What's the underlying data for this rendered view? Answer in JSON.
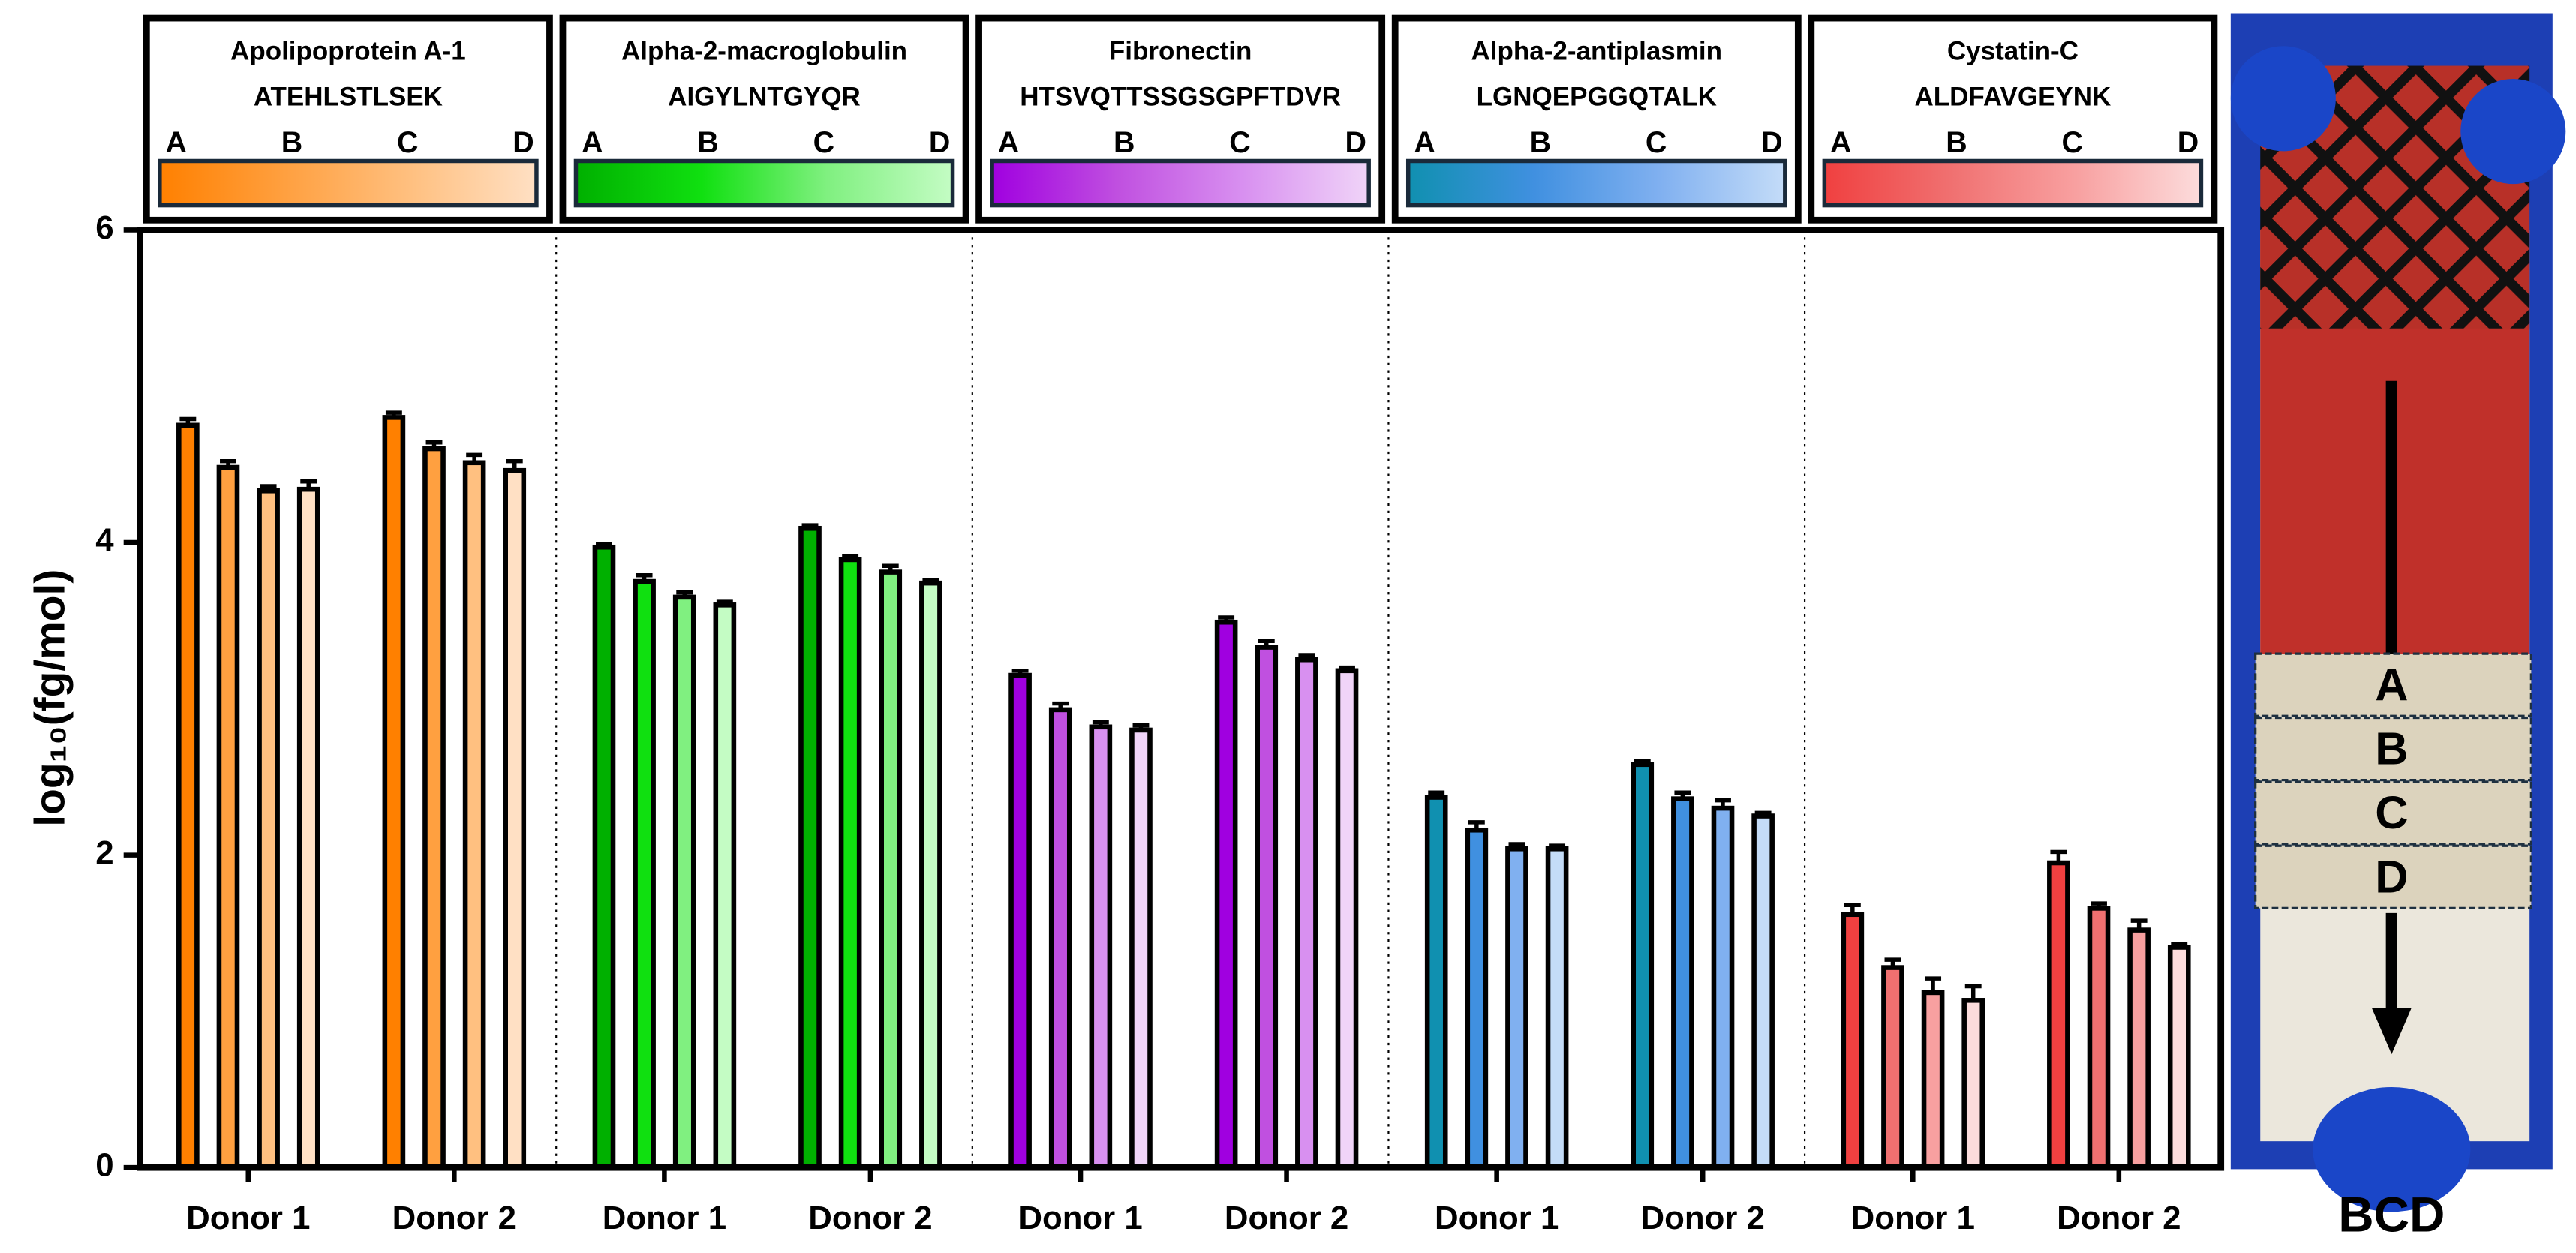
{
  "chart_data": {
    "type": "bar",
    "y_label": "log₁₀(fg/mol)",
    "ylim": [
      0,
      6
    ],
    "yticks": [
      0,
      2,
      4,
      6
    ],
    "panels": [
      {
        "title": "Apolipoprotein A-1",
        "subtitle": "ATEHLSTLSEK",
        "categories": [
          "Donor 1",
          "Donor 2"
        ],
        "series": [
          {
            "name": "A",
            "color": "#ff8000",
            "values": [
              4.75,
              4.8
            ],
            "errors": [
              0.04,
              0.03
            ]
          },
          {
            "name": "B",
            "color": "#ffa040",
            "values": [
              4.48,
              4.6
            ],
            "errors": [
              0.04,
              0.04
            ]
          },
          {
            "name": "C",
            "color": "#ffc080",
            "values": [
              4.33,
              4.51
            ],
            "errors": [
              0.03,
              0.05
            ]
          },
          {
            "name": "D",
            "color": "#ffe0c4",
            "values": [
              4.34,
              4.46
            ],
            "errors": [
              0.05,
              0.06
            ]
          }
        ]
      },
      {
        "title": "Alpha-2-macroglobulin",
        "subtitle": "AIGYLNTGYQR",
        "categories": [
          "Donor 1",
          "Donor 2"
        ],
        "series": [
          {
            "name": "A",
            "color": "#00b000",
            "values": [
              3.97,
              4.09
            ],
            "errors": [
              0.02,
              0.02
            ]
          },
          {
            "name": "B",
            "color": "#10e010",
            "values": [
              3.75,
              3.89
            ],
            "errors": [
              0.04,
              0.02
            ]
          },
          {
            "name": "C",
            "color": "#80f080",
            "values": [
              3.65,
              3.81
            ],
            "errors": [
              0.03,
              0.04
            ]
          },
          {
            "name": "D",
            "color": "#c4fcc4",
            "values": [
              3.6,
              3.74
            ],
            "errors": [
              0.02,
              0.02
            ]
          }
        ]
      },
      {
        "title": "Fibronectin",
        "subtitle": "HTSVQTTSSGSGPFTDVR",
        "categories": [
          "Donor 1",
          "Donor 2"
        ],
        "series": [
          {
            "name": "A",
            "color": "#a000e0",
            "values": [
              3.15,
              3.49
            ],
            "errors": [
              0.03,
              0.03
            ]
          },
          {
            "name": "B",
            "color": "#c050e0",
            "values": [
              2.93,
              3.33
            ],
            "errors": [
              0.04,
              0.04
            ]
          },
          {
            "name": "C",
            "color": "#d890f0",
            "values": [
              2.82,
              3.25
            ],
            "errors": [
              0.03,
              0.03
            ]
          },
          {
            "name": "D",
            "color": "#f0d4f8",
            "values": [
              2.8,
              3.18
            ],
            "errors": [
              0.03,
              0.02
            ]
          }
        ]
      },
      {
        "title": "Alpha-2-antiplasmin",
        "subtitle": "LGNQEPGGQTALK",
        "categories": [
          "Donor 1",
          "Donor 2"
        ],
        "series": [
          {
            "name": "A",
            "color": "#1090b0",
            "values": [
              2.37,
              2.58
            ],
            "errors": [
              0.03,
              0.02
            ]
          },
          {
            "name": "B",
            "color": "#4090e0",
            "values": [
              2.16,
              2.36
            ],
            "errors": [
              0.05,
              0.04
            ]
          },
          {
            "name": "C",
            "color": "#80b0f0",
            "values": [
              2.04,
              2.3
            ],
            "errors": [
              0.03,
              0.05
            ]
          },
          {
            "name": "D",
            "color": "#c4dcf8",
            "values": [
              2.04,
              2.25
            ],
            "errors": [
              0.02,
              0.02
            ]
          }
        ]
      },
      {
        "title": "Cystatin-C",
        "subtitle": "ALDFAVGEYNK",
        "categories": [
          "Donor 1",
          "Donor 2"
        ],
        "series": [
          {
            "name": "A",
            "color": "#f04040",
            "values": [
              1.62,
              1.95
            ],
            "errors": [
              0.06,
              0.07
            ]
          },
          {
            "name": "B",
            "color": "#f07070",
            "values": [
              1.28,
              1.66
            ],
            "errors": [
              0.05,
              0.03
            ]
          },
          {
            "name": "C",
            "color": "#f8a0a0",
            "values": [
              1.12,
              1.52
            ],
            "errors": [
              0.09,
              0.06
            ]
          },
          {
            "name": "D",
            "color": "#fcdcdc",
            "values": [
              1.07,
              1.41
            ],
            "errors": [
              0.09,
              0.02
            ]
          }
        ]
      }
    ]
  },
  "photo": {
    "zone_labels": [
      "A",
      "B",
      "C",
      "D"
    ],
    "caption": "BCD"
  }
}
